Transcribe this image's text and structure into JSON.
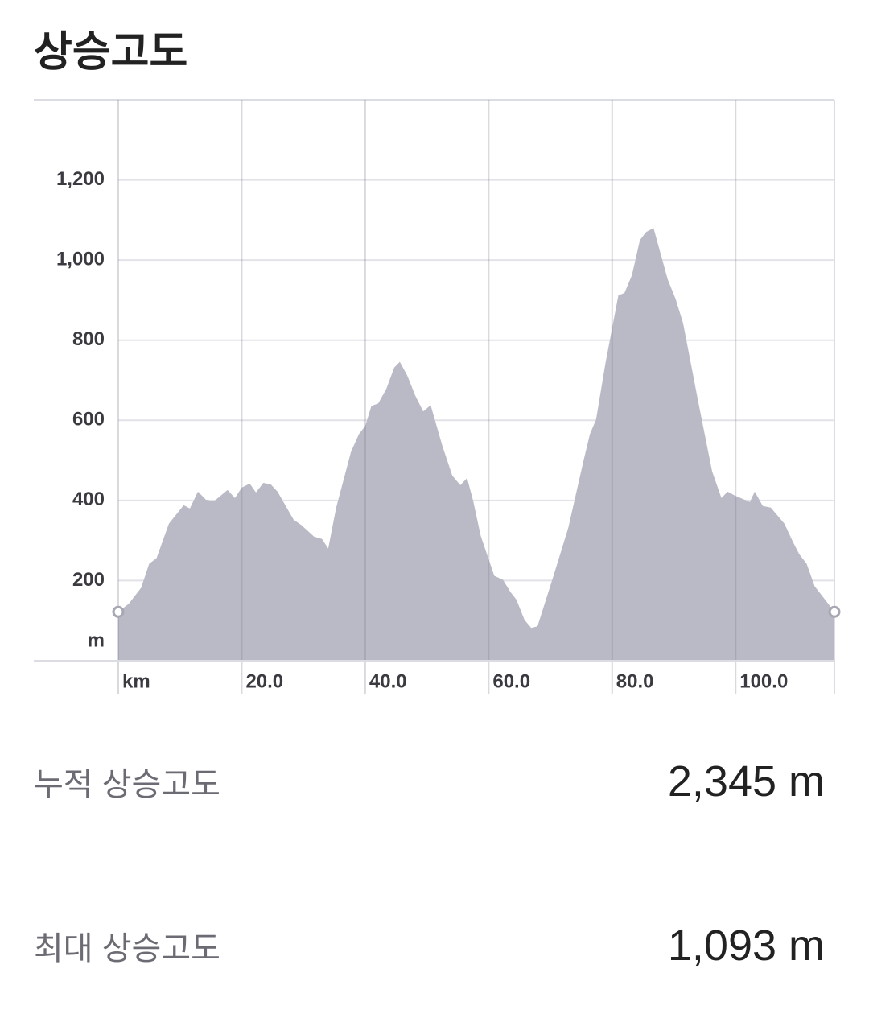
{
  "title": "상승고도",
  "chart_data": {
    "type": "area",
    "color": "#babac6",
    "grid": true,
    "y_label": "m",
    "x": [
      0,
      1.7,
      3.7,
      5,
      6.2,
      8.2,
      10.6,
      11.6,
      12.9,
      14.2,
      15.5,
      17.7,
      18.9,
      20,
      21.3,
      22.3,
      23.5,
      24.7,
      25.8,
      28.4,
      29.7,
      31.7,
      33,
      34,
      35.3,
      37.7,
      39,
      40,
      41,
      42.1,
      43.4,
      44.7,
      45.6,
      46.8,
      48.1,
      49.4,
      50.6,
      52.5,
      54.1,
      55.4,
      56.5,
      57.5,
      58.7,
      60.9,
      62.3,
      63.5,
      64.5,
      65.8,
      66.9,
      67.9,
      70.5,
      72.9,
      75.4,
      76.4,
      77.4,
      78.9,
      81,
      82,
      83.2,
      84.5,
      85.5,
      86.7,
      89,
      90.3,
      91.5,
      94,
      96.2,
      97.7,
      98.7,
      99.9,
      102.3,
      103.1,
      104.4,
      105.7,
      107.9,
      109.3,
      110.3,
      111.5,
      112.8,
      114.5,
      116
    ],
    "values": [
      122,
      142,
      182,
      242,
      256,
      342,
      388,
      380,
      422,
      402,
      398,
      426,
      406,
      432,
      442,
      420,
      444,
      440,
      422,
      352,
      338,
      310,
      304,
      280,
      382,
      522,
      566,
      586,
      636,
      642,
      678,
      732,
      746,
      712,
      662,
      622,
      638,
      536,
      462,
      438,
      456,
      398,
      312,
      212,
      202,
      172,
      152,
      102,
      82,
      86,
      212,
      332,
      502,
      566,
      602,
      742,
      912,
      918,
      962,
      1050,
      1070,
      1080,
      952,
      902,
      842,
      642,
      472,
      406,
      422,
      412,
      396,
      422,
      386,
      382,
      342,
      296,
      266,
      242,
      186,
      152,
      122
    ],
    "xlim": [
      0,
      116
    ],
    "xticks": [
      {
        "value": 0,
        "label": "km"
      },
      {
        "value": 20,
        "label": "20.0"
      },
      {
        "value": 40,
        "label": "40.0"
      },
      {
        "value": 60,
        "label": "60.0"
      },
      {
        "value": 80,
        "label": "80.0"
      },
      {
        "value": 100,
        "label": "100.0"
      }
    ],
    "ylim": [
      0,
      1400
    ],
    "yticks": [
      200,
      400,
      600,
      800,
      {
        "value": 1000,
        "label": "1,000"
      },
      {
        "value": 1200,
        "label": "1,200"
      }
    ]
  },
  "stats": [
    {
      "label": "누적 상승고도",
      "value": "2,345 m"
    },
    {
      "label": "최대 상승고도",
      "value": "1,093 m"
    }
  ]
}
